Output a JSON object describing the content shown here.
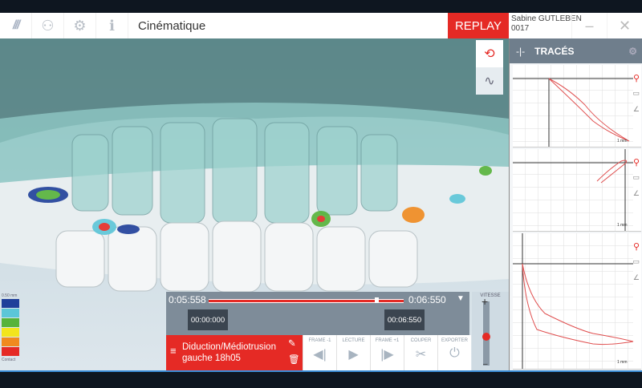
{
  "header": {
    "title": "Cinématique",
    "replay_label": "REPLAY",
    "user_name": "Sabine GUTLEBEN",
    "user_id": "0017",
    "minimize": "–",
    "close": "✕"
  },
  "icons": [
    "logo",
    "user-icon",
    "gear-icon",
    "info-icon"
  ],
  "legend": {
    "top_label": "0.50 mm",
    "bottom_label": "Contact",
    "colors": [
      "#1f3f9a",
      "#5cc6d8",
      "#56b33a",
      "#f2e51c",
      "#f08a1e",
      "#e52a25"
    ]
  },
  "timeline": {
    "start": "0:05:558",
    "end": "0:06:550",
    "marker_start": "00:00:000",
    "marker_end": "00:06:550",
    "position": 0.85
  },
  "clip": {
    "name_line1": "Diduction/Médiotrusion",
    "name_line2": "gauche 18h05"
  },
  "controls": [
    {
      "label": "FRAME -1",
      "glyph": "◀|"
    },
    {
      "label": "LECTURE",
      "glyph": "▶"
    },
    {
      "label": "FRAME +1",
      "glyph": "|▶"
    },
    {
      "label": "COUPER",
      "glyph": "✂"
    },
    {
      "label": "EXPORTER",
      "glyph": "⏻"
    }
  ],
  "speed": {
    "label": "VITESSE",
    "plus": "+",
    "minus": "–",
    "level": 0.45
  },
  "traces": {
    "title": "TRACÉS",
    "scale_label": "1 mm"
  },
  "accent": "#e52a25"
}
